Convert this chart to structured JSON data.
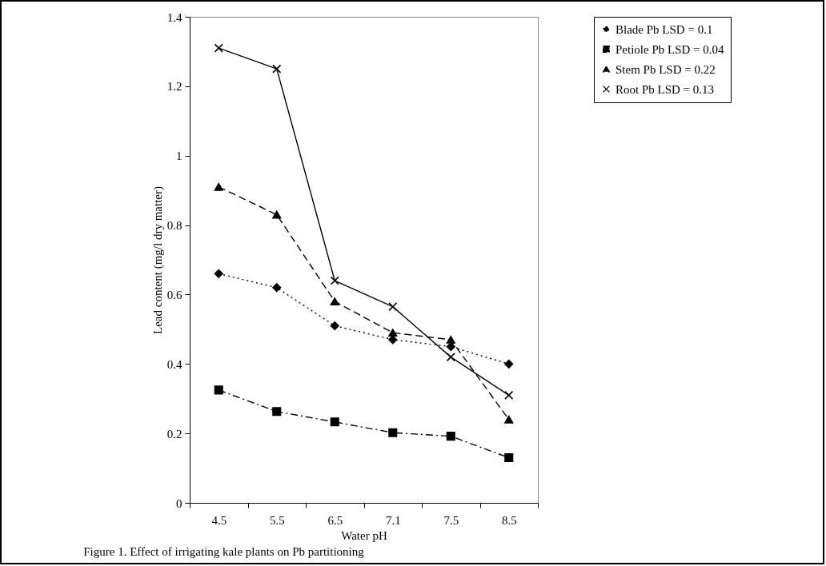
{
  "chart_data": {
    "type": "line",
    "xlabel": "Water pH",
    "ylabel": "Lead content (mg/l dry matter)",
    "annotations": [
      "Figure 1. Effect of irrigating kale plants on Pb partitioning"
    ],
    "categories": [
      "4.5",
      "5.5",
      "6.5",
      "7.1",
      "7.5",
      "8.5"
    ],
    "ylim": [
      0,
      1.4
    ],
    "yticks": [
      0,
      0.2,
      0.4,
      0.6,
      0.8,
      1,
      1.2,
      1.4
    ],
    "grid": false,
    "legend": "top right",
    "series": [
      {
        "name": "Blade Pb LSD = 0.1",
        "color": "#000000",
        "marker": "diamond",
        "line_style": "dotted",
        "values": [
          0.66,
          0.62,
          0.51,
          0.47,
          0.45,
          0.4
        ]
      },
      {
        "name": "Petiole Pb LSD = 0.04",
        "color": "#000000",
        "marker": "square",
        "line_style": "dashdot",
        "values": [
          0.325,
          0.263,
          0.233,
          0.202,
          0.192,
          0.13
        ]
      },
      {
        "name": "Stem Pb LSD = 0.22",
        "color": "#000000",
        "marker": "triangle",
        "line_style": "dashed",
        "values": [
          0.91,
          0.83,
          0.58,
          0.49,
          0.47,
          0.24
        ]
      },
      {
        "name": "Root Pb LSD = 0.13",
        "color": "#000000",
        "marker": "cross",
        "line_style": "solid",
        "values": [
          1.31,
          1.25,
          0.64,
          0.565,
          0.42,
          0.31
        ]
      }
    ]
  }
}
